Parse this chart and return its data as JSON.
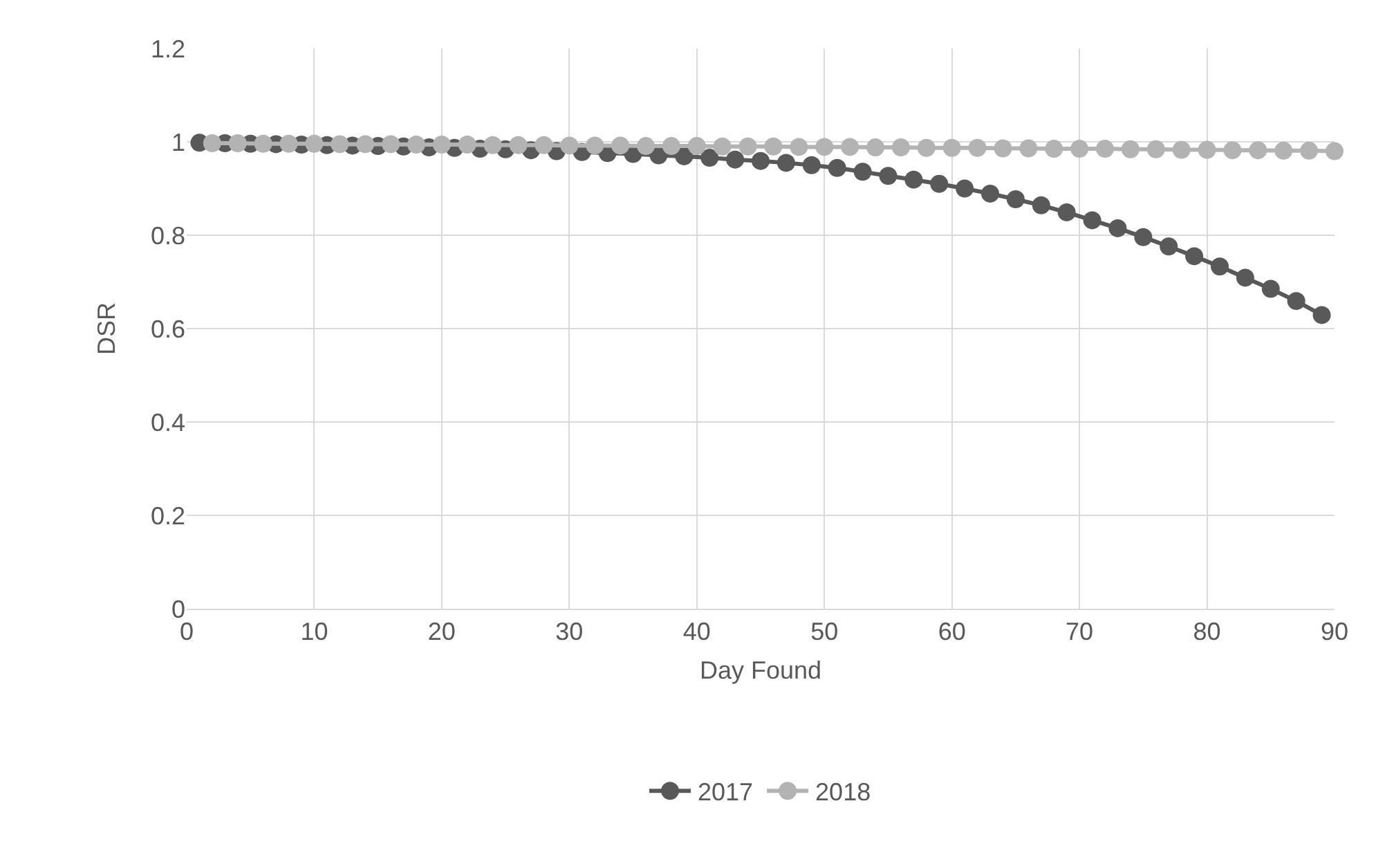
{
  "chart_data": {
    "type": "line",
    "xlabel": "Day Found",
    "ylabel": "DSR",
    "xlim": [
      0,
      90
    ],
    "xticks": [
      0,
      10,
      20,
      30,
      40,
      50,
      60,
      70,
      80,
      90
    ],
    "ylim": [
      0,
      1.2
    ],
    "yticks": [
      0,
      0.2,
      0.4,
      0.6,
      0.8,
      1,
      1.2
    ],
    "grid": true,
    "legend": "bottom",
    "marker": "circle",
    "line_style": "solid",
    "series": [
      {
        "name": "2017",
        "color": "#595959",
        "x": [
          1,
          3,
          5,
          7,
          9,
          11,
          13,
          15,
          17,
          19,
          21,
          23,
          25,
          27,
          29,
          31,
          33,
          35,
          37,
          39,
          41,
          43,
          45,
          47,
          49,
          51,
          53,
          55,
          57,
          59,
          61,
          63,
          65,
          67,
          69,
          71,
          73,
          75,
          77,
          79,
          81,
          83,
          85,
          87,
          89
        ],
        "values": [
          0.998,
          0.997,
          0.996,
          0.995,
          0.994,
          0.993,
          0.992,
          0.991,
          0.99,
          0.988,
          0.987,
          0.985,
          0.984,
          0.982,
          0.98,
          0.978,
          0.976,
          0.974,
          0.971,
          0.969,
          0.966,
          0.962,
          0.959,
          0.955,
          0.95,
          0.944,
          0.936,
          0.927,
          0.919,
          0.91,
          0.9,
          0.889,
          0.877,
          0.864,
          0.849,
          0.832,
          0.815,
          0.796,
          0.776,
          0.755,
          0.733,
          0.709,
          0.685,
          0.659,
          0.629
        ]
      },
      {
        "name": "2018",
        "color": "#b3b3b3",
        "x": [
          2,
          4,
          6,
          8,
          10,
          12,
          14,
          16,
          18,
          20,
          22,
          24,
          26,
          28,
          30,
          32,
          34,
          36,
          38,
          40,
          42,
          44,
          46,
          48,
          50,
          52,
          54,
          56,
          58,
          60,
          62,
          64,
          66,
          68,
          70,
          72,
          74,
          76,
          78,
          80,
          82,
          84,
          86,
          88,
          90
        ],
        "values": [
          0.997,
          0.997,
          0.996,
          0.996,
          0.996,
          0.995,
          0.995,
          0.995,
          0.994,
          0.994,
          0.994,
          0.993,
          0.993,
          0.993,
          0.992,
          0.992,
          0.992,
          0.991,
          0.991,
          0.991,
          0.99,
          0.99,
          0.99,
          0.989,
          0.989,
          0.989,
          0.988,
          0.988,
          0.987,
          0.987,
          0.987,
          0.986,
          0.986,
          0.985,
          0.985,
          0.985,
          0.984,
          0.984,
          0.983,
          0.983,
          0.982,
          0.982,
          0.981,
          0.981,
          0.98
        ]
      }
    ]
  }
}
